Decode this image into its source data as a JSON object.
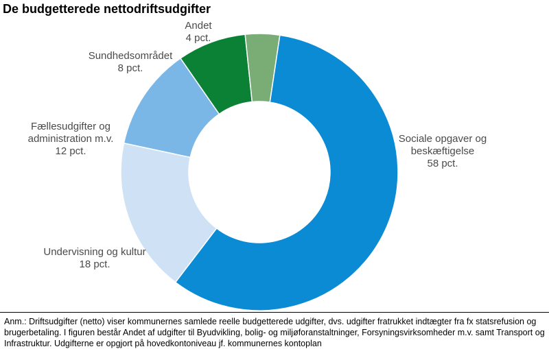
{
  "title": "De budgetterede nettodriftsudgifter",
  "note": "Anm.: Driftsudgifter (netto) viser kommunernes samlede reelle budgetterede udgifter, dvs. udgifter fratrukket indtægter fra fx statsrefusion og brugerbetaling.  I figuren består Andet af udgifter til Byudvikling, bolig- og miljøforanstaltninger, Forsyningsvirksomheder m.v. samt Transport og Infrastruktur. Udgifterne er opgjort på hovedkontoniveau jf. kommunernes kontoplan",
  "chart_data": {
    "type": "pie",
    "variant": "donut",
    "slices": [
      {
        "name": "Sociale opgaver og beskæftigelse",
        "label_lines": [
          "Sociale opgaver og",
          "beskæftigelse",
          "58 pct."
        ],
        "value": 58,
        "color": "#0a8bd4",
        "label_side": "right"
      },
      {
        "name": "Undervisning og kultur",
        "label_lines": [
          "Undervisning og kultur",
          "18 pct."
        ],
        "value": 18,
        "color": "#cfe2f5",
        "label_side": "left"
      },
      {
        "name": "Fællesudgifter og administration m.v.",
        "label_lines": [
          "Fællesudgifter og",
          "administration m.v.",
          "12 pct."
        ],
        "value": 12,
        "color": "#7ab6e6",
        "label_side": "left"
      },
      {
        "name": "Sundhedsområdet",
        "label_lines": [
          "Sundhedsområdet",
          "8 pct."
        ],
        "value": 8,
        "color": "#0b8136",
        "label_side": "left"
      },
      {
        "name": "Andet",
        "label_lines": [
          "Andet",
          "4 pct."
        ],
        "value": 4,
        "color": "#7aad75",
        "label_side": "top"
      }
    ]
  }
}
